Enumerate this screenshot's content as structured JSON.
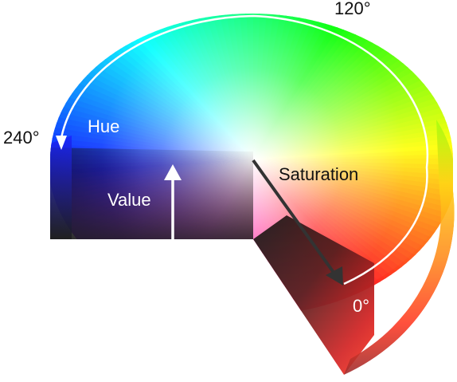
{
  "labels": {
    "angle_120": "120°",
    "angle_240": "240°",
    "angle_0": "0°",
    "hue": "Hue",
    "value": "Value",
    "saturation": "Saturation"
  },
  "colors": {
    "label_dark": "#111111",
    "label_light": "#ffffff",
    "hue_arrow": "#ffffff",
    "value_arrow": "#ffffff",
    "saturation_arrow": "#333333",
    "background": "#ffffff"
  },
  "icons": {
    "hue_arrow": "curved-arrow-icon",
    "value_arrow": "up-arrow-icon",
    "saturation_arrow": "diagonal-arrow-icon"
  }
}
